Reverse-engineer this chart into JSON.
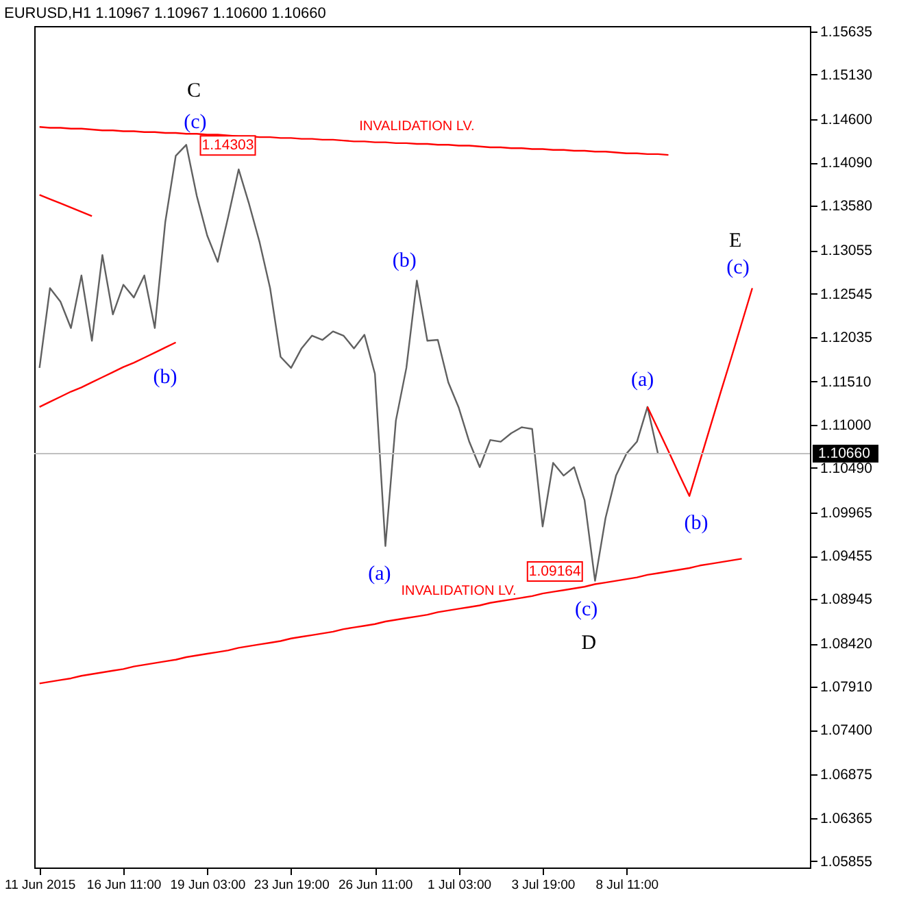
{
  "chart_data": {
    "type": "line",
    "title": "EURUSD,H1  1.10967 1.10967 1.10600 1.10660",
    "categories": [
      "11 Jun 2015",
      null,
      null,
      null,
      null,
      null,
      null,
      null,
      "16 Jun 11:00",
      null,
      null,
      null,
      null,
      null,
      null,
      null,
      "19 Jun 03:00",
      null,
      null,
      null,
      null,
      null,
      null,
      null,
      "23 Jun 19:00",
      null,
      null,
      null,
      null,
      null,
      null,
      null,
      "26 Jun 11:00",
      null,
      null,
      null,
      null,
      null,
      null,
      null,
      "1 Jul 03:00",
      null,
      null,
      null,
      null,
      null,
      null,
      null,
      "3 Jul 19:00",
      null,
      null,
      null,
      null,
      null,
      null,
      null,
      "8 Jul 11:00",
      null,
      null,
      null,
      null,
      null,
      null,
      null,
      null,
      null,
      null,
      null,
      null,
      null,
      null,
      null,
      null,
      null
    ],
    "ylim": [
      1.0578,
      1.157
    ],
    "yticks": [
      {
        "value": 1.15635,
        "label": "1.15635"
      },
      {
        "value": 1.1513,
        "label": "1.15130"
      },
      {
        "value": 1.146,
        "label": "1.14600"
      },
      {
        "value": 1.1409,
        "label": "1.14090"
      },
      {
        "value": 1.1358,
        "label": "1.13580"
      },
      {
        "value": 1.13055,
        "label": "1.13055"
      },
      {
        "value": 1.12545,
        "label": "1.12545"
      },
      {
        "value": 1.12035,
        "label": "1.12035"
      },
      {
        "value": 1.1151,
        "label": "1.11510"
      },
      {
        "value": 1.11,
        "label": "1.11000"
      },
      {
        "value": 1.1049,
        "label": "1.10490"
      },
      {
        "value": 1.09965,
        "label": "1.09965"
      },
      {
        "value": 1.09455,
        "label": "1.09455"
      },
      {
        "value": 1.08945,
        "label": "1.08945"
      },
      {
        "value": 1.0842,
        "label": "1.08420"
      },
      {
        "value": 1.0791,
        "label": "1.07910"
      },
      {
        "value": 1.074,
        "label": "1.07400"
      },
      {
        "value": 1.06875,
        "label": "1.06875"
      },
      {
        "value": 1.06365,
        "label": "1.06365"
      },
      {
        "value": 1.05855,
        "label": "1.05855"
      }
    ],
    "series": [
      {
        "color": "#606060",
        "values": [
          1.1167,
          1.1261,
          1.1245,
          1.1214,
          1.1276,
          1.1199,
          1.13,
          1.123,
          1.1265,
          1.125,
          1.1276,
          1.1214,
          1.1339,
          1.1417,
          1.143,
          1.137,
          1.1323,
          1.1292,
          1.1345,
          1.1401,
          1.136,
          1.1315,
          1.1261,
          1.118,
          1.1167,
          1.119,
          1.1205,
          1.12,
          1.121,
          1.1205,
          1.119,
          1.1206,
          1.116,
          1.0957,
          1.1105,
          1.1167,
          1.127,
          1.1199,
          1.12,
          1.115,
          1.112,
          1.108,
          1.105,
          1.1082,
          1.108,
          1.109,
          1.1097,
          1.1095,
          1.098,
          1.1055,
          1.104,
          1.105,
          1.1011,
          1.0916,
          1.099,
          1.104,
          1.1066,
          1.108,
          1.1121,
          1.1066,
          null,
          null,
          null,
          null,
          null,
          null,
          null,
          null,
          null,
          null,
          null,
          null,
          null,
          null
        ]
      },
      {
        "name": "INVALIDATION LV.",
        "color": "#ff0000",
        "values": [
          1.1451,
          1.145,
          1.145,
          1.1449,
          1.1449,
          1.1448,
          1.1447,
          1.1447,
          1.1446,
          1.1446,
          1.1445,
          1.1445,
          1.1444,
          1.1444,
          1.1443,
          1.1443,
          1.1442,
          1.1442,
          1.1441,
          1.144,
          1.144,
          1.1439,
          1.1439,
          1.1438,
          1.1438,
          1.1437,
          1.1437,
          1.1436,
          1.1436,
          1.1435,
          1.1434,
          1.1434,
          1.1433,
          1.1433,
          1.1432,
          1.1432,
          1.1431,
          1.1431,
          1.143,
          1.143,
          1.1429,
          1.1429,
          1.1428,
          1.1427,
          1.1427,
          1.1426,
          1.1426,
          1.1425,
          1.1425,
          1.1424,
          1.1424,
          1.1423,
          1.1423,
          1.1422,
          1.1422,
          1.1421,
          1.142,
          1.142,
          1.1419,
          1.1419,
          1.1418,
          null,
          null,
          null,
          null,
          null,
          null,
          null,
          null,
          null,
          null,
          null,
          null,
          null
        ]
      },
      {
        "color": "#ff0000",
        "values": [
          1.1371,
          1.1366,
          1.1361,
          1.1356,
          1.1351,
          1.1346,
          null,
          null,
          null,
          null,
          null,
          null,
          null,
          null,
          null,
          null,
          null,
          null,
          null,
          null,
          null,
          null,
          null,
          null,
          null,
          null,
          null,
          null,
          null,
          null,
          null,
          null,
          null,
          null,
          null,
          null,
          null,
          null,
          null,
          null,
          null,
          null,
          null,
          null,
          null,
          null,
          null,
          null,
          null,
          null,
          null,
          null,
          null,
          null,
          null,
          null,
          null,
          null,
          null,
          null,
          null,
          null,
          null,
          null,
          null,
          null,
          null,
          null,
          null,
          null,
          null,
          null,
          null,
          null
        ]
      },
      {
        "color": "#ff0000",
        "values": [
          1.1121,
          1.1127,
          1.1133,
          1.1139,
          1.1144,
          1.115,
          1.1156,
          1.1162,
          1.1168,
          1.1173,
          1.1179,
          1.1185,
          1.1191,
          1.1197,
          null,
          null,
          null,
          null,
          null,
          null,
          null,
          null,
          null,
          null,
          null,
          null,
          null,
          null,
          null,
          null,
          null,
          null,
          null,
          null,
          null,
          null,
          null,
          null,
          null,
          null,
          null,
          null,
          null,
          null,
          null,
          null,
          null,
          null,
          null,
          null,
          null,
          null,
          null,
          null,
          null,
          null,
          null,
          null,
          null,
          null,
          null,
          null,
          null,
          null,
          null,
          null,
          null,
          null,
          null,
          null,
          null,
          null,
          null,
          null
        ]
      },
      {
        "name": "INVALIDATION LV.",
        "color": "#ff0000",
        "values": [
          1.0795,
          1.0797,
          1.0799,
          1.0801,
          1.0804,
          1.0806,
          1.0808,
          1.081,
          1.0812,
          1.0815,
          1.0817,
          1.0819,
          1.0821,
          1.0823,
          1.0826,
          1.0828,
          1.083,
          1.0832,
          1.0834,
          1.0837,
          1.0839,
          1.0841,
          1.0843,
          1.0845,
          1.0848,
          1.085,
          1.0852,
          1.0854,
          1.0856,
          1.0859,
          1.0861,
          1.0863,
          1.0865,
          1.0868,
          1.087,
          1.0872,
          1.0874,
          1.0876,
          1.0879,
          1.0881,
          1.0883,
          1.0885,
          1.0887,
          1.089,
          1.0892,
          1.0894,
          1.0896,
          1.0898,
          1.0901,
          1.0903,
          1.0905,
          1.0907,
          1.0909,
          1.0912,
          1.0914,
          1.0916,
          1.0918,
          1.092,
          1.0923,
          1.0925,
          1.0927,
          1.0929,
          1.0931,
          1.0934,
          1.0936,
          1.0938,
          1.094,
          1.0942,
          null,
          null,
          null,
          null,
          null,
          null
        ]
      },
      {
        "color": "#ff0000",
        "values": [
          null,
          null,
          null,
          null,
          null,
          null,
          null,
          null,
          null,
          null,
          null,
          null,
          null,
          null,
          null,
          null,
          null,
          null,
          null,
          null,
          null,
          null,
          null,
          null,
          null,
          null,
          null,
          null,
          null,
          null,
          null,
          null,
          null,
          null,
          null,
          null,
          null,
          null,
          null,
          null,
          null,
          null,
          null,
          null,
          null,
          null,
          null,
          null,
          null,
          null,
          null,
          null,
          null,
          null,
          null,
          null,
          null,
          null,
          1.1121,
          1.1095,
          1.1069,
          1.1042,
          1.1016,
          1.1057,
          1.1098,
          1.1139,
          1.1179,
          1.122,
          1.1261,
          null,
          null,
          null,
          null,
          null
        ]
      }
    ],
    "ref_lines": [
      {
        "axis": "y",
        "value": 1.1066,
        "label": "1.10660",
        "color": "#c0c0c0"
      }
    ],
    "annotations": [
      "C",
      "(c)",
      "1.14303",
      "(b)",
      "(b)",
      "(a)",
      "1.09164",
      "(c)",
      "D",
      "(a)",
      "(b)",
      "E",
      "(c)"
    ]
  }
}
